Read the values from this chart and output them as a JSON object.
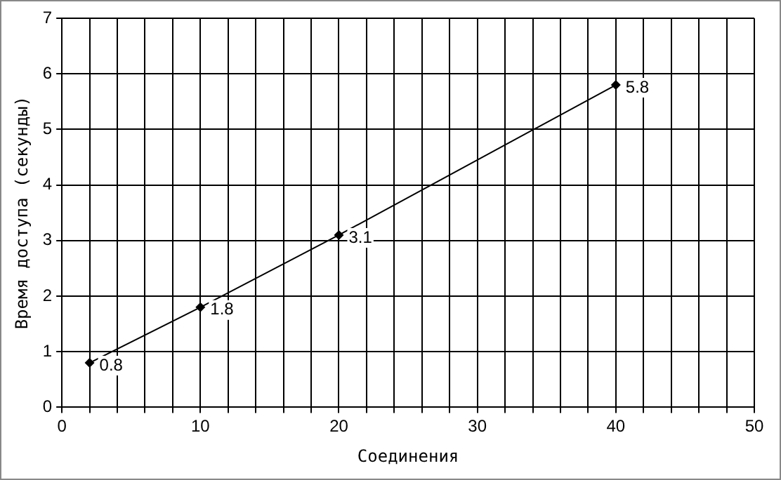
{
  "chart_data": {
    "type": "line",
    "xlabel": "Соединения",
    "ylabel": "Время доступа (секунды)",
    "x": [
      2,
      10,
      20,
      40
    ],
    "series": [
      {
        "color": "#000000",
        "values": [
          0.8,
          1.8,
          3.1,
          5.8
        ]
      }
    ],
    "xlim": [
      0,
      50
    ],
    "xticks": [
      0,
      {
        "value": 2,
        "label": null
      },
      {
        "value": 4,
        "label": null
      },
      {
        "value": 6,
        "label": null
      },
      {
        "value": 8,
        "label": null
      },
      10,
      {
        "value": 12,
        "label": null
      },
      {
        "value": 14,
        "label": null
      },
      {
        "value": 16,
        "label": null
      },
      {
        "value": 18,
        "label": null
      },
      20,
      {
        "value": 22,
        "label": null
      },
      {
        "value": 24,
        "label": null
      },
      {
        "value": 26,
        "label": null
      },
      {
        "value": 28,
        "label": null
      },
      30,
      {
        "value": 32,
        "label": null
      },
      {
        "value": 34,
        "label": null
      },
      {
        "value": 36,
        "label": null
      },
      {
        "value": 38,
        "label": null
      },
      40,
      {
        "value": 42,
        "label": null
      },
      {
        "value": 44,
        "label": null
      },
      {
        "value": 46,
        "label": null
      },
      {
        "value": 48,
        "label": null
      },
      50
    ],
    "ylim": [
      0,
      7
    ],
    "yticks": [
      0,
      1,
      2,
      3,
      4,
      5,
      6,
      7
    ],
    "grid": true,
    "marker": "diamond",
    "line_style": "solid",
    "data_labels": true,
    "legend": false
  }
}
